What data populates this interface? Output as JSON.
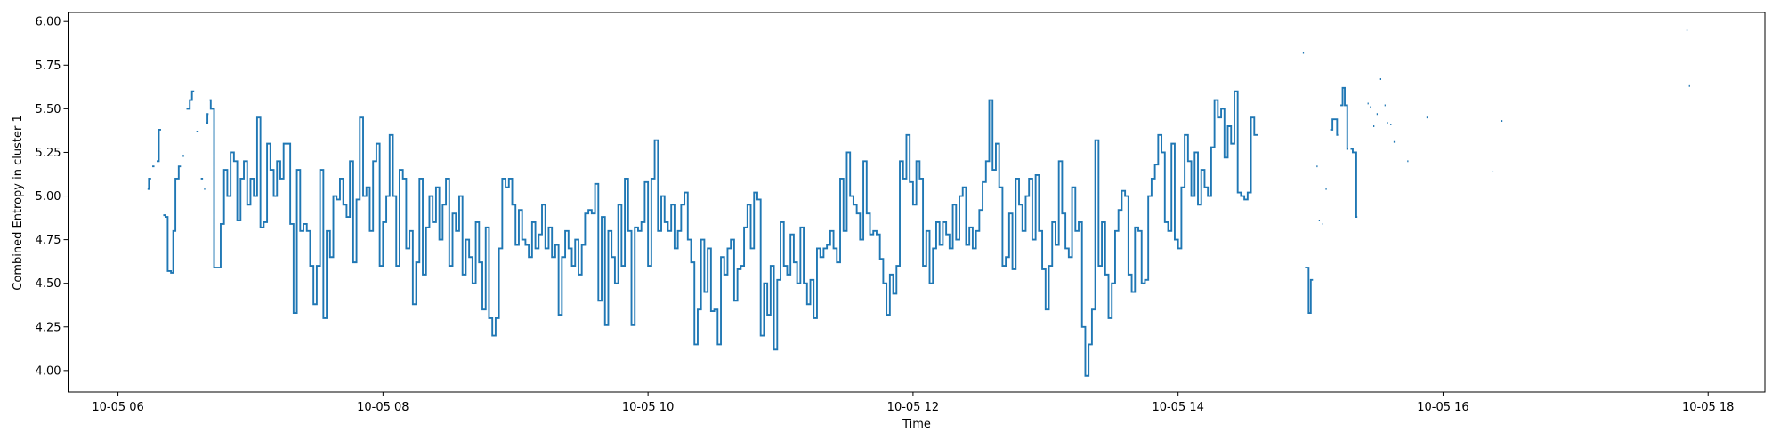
{
  "chart_data": {
    "type": "line",
    "step": true,
    "x_label": "Time",
    "y_label": "Combined Entropy in cluster 1",
    "xlim": [
      337.4,
      1105.7
    ],
    "ylim": [
      3.877,
      6.052
    ],
    "xticks": [
      {
        "value": 360,
        "label": "10-05 06"
      },
      {
        "value": 480,
        "label": "10-05 08"
      },
      {
        "value": 600,
        "label": "10-05 10"
      },
      {
        "value": 720,
        "label": "10-05 12"
      },
      {
        "value": 840,
        "label": "10-05 14"
      },
      {
        "value": 960,
        "label": "10-05 16"
      },
      {
        "value": 1080,
        "label": "10-05 18"
      }
    ],
    "yticks": [
      {
        "value": 4,
        "label": "4.00"
      },
      4.25,
      {
        "value": 4.5,
        "label": "4.50"
      },
      4.75,
      {
        "value": 5,
        "label": "5.00"
      },
      5.25,
      {
        "value": 5.5,
        "label": "5.50"
      },
      5.75,
      {
        "value": 6,
        "label": "6.00"
      }
    ],
    "grid": false,
    "series": [
      {
        "color": "#1f77b4",
        "x": [
          373.4,
          374,
          375,
          375.5,
          376.5,
          377.5,
          378.5,
          379.5,
          380.5,
          381.5,
          382.5,
          384,
          385,
          386,
          387.5,
          388.5,
          389,
          390,
          391,
          392.5,
          393.5,
          394.5,
          395.5,
          396.5,
          397.5,
          398.5,
          399,
          399.5,
          400,
          400.5,
          401,
          401.5,
          402,
          403.5,
          405,
          406.5,
          408,
          409.5,
          411,
          412.5,
          414,
          415.5,
          417,
          418.5,
          420,
          421.5,
          423,
          424.5,
          426,
          427.5,
          429,
          430.5,
          432,
          433.5,
          435,
          436.5,
          438,
          439.5,
          441,
          442.5,
          444,
          445.5,
          447,
          448.5,
          450,
          451.5,
          453,
          454.5,
          456,
          457.5,
          459,
          460.5,
          462,
          463.5,
          465,
          466.5,
          468,
          469.5,
          471,
          472.5,
          474,
          475.5,
          477,
          478.5,
          480,
          481.5,
          483,
          484.5,
          486,
          487.5,
          489,
          490.5,
          492,
          493.5,
          495,
          496.5,
          498,
          499.5,
          501,
          502.5,
          504,
          505.5,
          507,
          508.5,
          510,
          511.5,
          513,
          514.5,
          516,
          517.5,
          519,
          520.5,
          522,
          523.5,
          525,
          526.5,
          528,
          529.5,
          531,
          532.5,
          534,
          535.5,
          537,
          538.5,
          540,
          541.5,
          543,
          544.5,
          546,
          547.5,
          549,
          550.5,
          552,
          553.5,
          555,
          556.5,
          558,
          559.5,
          561,
          562.5,
          564,
          565.5,
          567,
          568.5,
          570,
          571.5,
          573,
          574.5,
          576,
          577.5,
          579,
          580.5,
          582,
          583.5,
          585,
          586.5,
          588,
          589.5,
          591,
          592.5,
          594,
          595.5,
          597,
          598.5,
          600,
          601.5,
          603,
          604.5,
          606,
          607.5,
          609,
          610.5,
          612,
          613.5,
          615,
          616.5,
          618,
          619.5,
          621,
          622.5,
          624,
          625.5,
          627,
          628.5,
          630,
          631.5,
          633,
          634.5,
          636,
          637.5,
          639,
          640.5,
          642,
          643.5,
          645,
          646.5,
          648,
          649.5,
          651,
          652.5,
          654,
          655.5,
          657,
          658.5,
          660,
          661.5,
          663,
          664.5,
          666,
          667.5,
          669,
          670.5,
          672,
          673.5,
          675,
          676.5,
          678,
          679.5,
          681,
          682.5,
          684,
          685.5,
          687,
          688.5,
          690,
          691.5,
          693,
          694.5,
          696,
          697.5,
          699,
          700.5,
          702,
          703.5,
          705,
          706.5,
          708,
          709.5,
          711,
          712.5,
          714,
          715.5,
          717,
          718.5,
          720,
          721.5,
          723,
          724.5,
          726,
          727.5,
          729,
          730.5,
          732,
          733.5,
          735,
          736.5,
          738,
          739.5,
          741,
          742.5,
          744,
          745.5,
          747,
          748.5,
          750,
          751.5,
          753,
          754.5,
          756,
          757.5,
          759,
          760.5,
          762,
          763.5,
          765,
          766.5,
          768,
          769.5,
          771,
          772.5,
          774,
          775.5,
          777,
          778.5,
          780,
          781.5,
          783,
          784.5,
          786,
          787.5,
          789,
          790.5,
          792,
          793.5,
          795,
          796.5,
          798,
          799.5,
          801,
          802.5,
          804,
          805.5,
          807,
          808.5,
          810,
          811.5,
          813,
          814.5,
          816,
          817.5,
          819,
          820.5,
          822,
          823.5,
          825,
          826.5,
          828,
          829.5,
          831,
          832.5,
          834,
          835.5,
          837,
          838.5,
          840,
          841.5,
          843,
          844.5,
          846,
          847.5,
          849,
          850.5,
          852,
          853.5,
          855,
          856.5,
          858,
          859.5,
          861,
          862.5,
          864,
          865.5,
          867,
          868.5,
          870,
          871.5,
          873,
          874.5,
          876,
          896.5,
          897,
          897.5,
          898.6,
          899.1,
          900.1,
          901.1,
          902.7,
          903.2,
          903.7,
          904.2,
          905.3,
          905.8,
          906.8,
          907.3,
          908.9,
          909.9,
          910.9,
          912,
          912.5,
          913.5,
          914.5,
          915.5,
          916.6,
          917.1,
          918.1,
          919.1,
          920.7,
          921.2,
          925.8,
          926.3,
          926.9,
          927.4,
          928.4,
          928.9,
          929.9,
          930.4,
          931.5,
          932,
          933.5,
          934,
          934.6,
          935.1,
          936.1,
          936.6,
          937.6,
          938.1,
          943.8,
          944.3,
          952.5,
          953,
          982.3,
          982.8,
          986.4,
          986.9,
          1070.2,
          1070.7,
          1071.3,
          1071.8
        ],
        "values": [
          5.04,
          5.1,
          null,
          5.17,
          null,
          5.2,
          5.38,
          null,
          4.89,
          4.88,
          4.57,
          4.56,
          4.8,
          5.1,
          5.17,
          null,
          5.23,
          null,
          5.5,
          5.55,
          5.6,
          null,
          5.37,
          null,
          5.1,
          null,
          5.04,
          null,
          5.42,
          5.47,
          null,
          5.55,
          5.5,
          4.59,
          4.59,
          4.84,
          5.15,
          5.0,
          5.25,
          5.2,
          4.86,
          5.1,
          5.2,
          4.95,
          5.1,
          5.0,
          5.45,
          4.82,
          4.85,
          5.3,
          5.15,
          5.0,
          5.2,
          5.1,
          5.3,
          5.3,
          4.84,
          4.33,
          5.15,
          4.8,
          4.84,
          4.8,
          4.6,
          4.38,
          4.6,
          5.15,
          4.3,
          4.8,
          4.65,
          5.0,
          4.98,
          5.1,
          4.95,
          4.88,
          5.2,
          4.62,
          4.98,
          5.45,
          5.0,
          5.05,
          4.8,
          5.2,
          5.3,
          4.6,
          4.85,
          5.0,
          5.35,
          5.0,
          4.6,
          5.15,
          5.1,
          4.7,
          4.8,
          4.38,
          4.62,
          5.1,
          4.55,
          4.82,
          5.0,
          4.85,
          5.05,
          4.75,
          4.95,
          5.1,
          4.6,
          4.9,
          4.8,
          5.0,
          4.55,
          4.75,
          4.65,
          4.5,
          4.85,
          4.62,
          4.35,
          4.82,
          4.3,
          4.2,
          4.3,
          4.7,
          5.1,
          5.05,
          5.1,
          4.95,
          4.72,
          4.92,
          4.75,
          4.72,
          4.65,
          4.85,
          4.7,
          4.78,
          4.95,
          4.7,
          4.82,
          4.65,
          4.72,
          4.32,
          4.65,
          4.8,
          4.7,
          4.6,
          4.75,
          4.55,
          4.72,
          4.9,
          4.92,
          4.9,
          5.07,
          4.4,
          4.88,
          4.26,
          4.8,
          4.65,
          4.5,
          4.95,
          4.6,
          5.1,
          4.8,
          4.26,
          4.82,
          4.8,
          4.85,
          5.08,
          4.6,
          5.1,
          5.32,
          4.8,
          5.0,
          4.85,
          4.8,
          4.95,
          4.7,
          4.8,
          4.95,
          5.02,
          4.75,
          4.62,
          4.15,
          4.35,
          4.75,
          4.45,
          4.7,
          4.34,
          4.35,
          4.15,
          4.65,
          4.55,
          4.7,
          4.75,
          4.4,
          4.58,
          4.6,
          4.82,
          4.95,
          4.7,
          5.02,
          4.98,
          4.2,
          4.5,
          4.32,
          4.6,
          4.12,
          4.52,
          4.85,
          4.6,
          4.55,
          4.78,
          4.62,
          4.5,
          4.82,
          4.5,
          4.38,
          4.52,
          4.3,
          4.7,
          4.65,
          4.7,
          4.72,
          4.8,
          4.7,
          4.62,
          5.1,
          4.8,
          5.25,
          5.0,
          4.95,
          4.9,
          4.75,
          5.2,
          4.9,
          4.78,
          4.8,
          4.78,
          4.64,
          4.5,
          4.32,
          4.55,
          4.44,
          4.6,
          5.2,
          5.1,
          5.35,
          5.08,
          4.95,
          5.2,
          5.1,
          4.6,
          4.8,
          4.5,
          4.7,
          4.85,
          4.72,
          4.85,
          4.78,
          4.7,
          4.95,
          4.75,
          5.0,
          5.05,
          4.72,
          4.82,
          4.7,
          4.8,
          4.92,
          5.08,
          5.2,
          5.55,
          5.15,
          5.3,
          5.05,
          4.6,
          4.65,
          4.9,
          4.58,
          5.1,
          4.95,
          4.8,
          5.0,
          5.1,
          4.75,
          5.12,
          4.8,
          4.58,
          4.35,
          4.6,
          4.85,
          4.72,
          5.2,
          4.9,
          4.7,
          4.65,
          5.05,
          4.8,
          4.85,
          4.25,
          3.97,
          4.15,
          4.35,
          5.32,
          4.6,
          4.85,
          4.55,
          4.3,
          4.5,
          4.8,
          4.92,
          5.03,
          5.0,
          4.55,
          4.45,
          4.82,
          4.8,
          4.5,
          4.52,
          5.0,
          5.1,
          5.18,
          5.35,
          5.25,
          4.85,
          4.8,
          5.3,
          4.75,
          4.7,
          5.05,
          5.35,
          5.2,
          5.0,
          5.25,
          4.95,
          5.15,
          5.05,
          5.0,
          5.28,
          5.55,
          5.45,
          5.5,
          5.22,
          5.4,
          5.3,
          5.6,
          5.02,
          5.0,
          4.98,
          5.02,
          5.45,
          5.35,
          null,
          5.82,
          null,
          4.59,
          4.59,
          4.33,
          4.52,
          null,
          5.17,
          null,
          4.86,
          null,
          4.84,
          null,
          5.04,
          null,
          5.38,
          5.44,
          5.44,
          5.35,
          null,
          5.52,
          5.62,
          5.52,
          5.27,
          null,
          5.27,
          5.25,
          4.88,
          null,
          5.53,
          null,
          5.51,
          null,
          5.4,
          null,
          5.47,
          null,
          5.67,
          null,
          5.52,
          null,
          5.42,
          null,
          5.41,
          null,
          5.31,
          null,
          5.2,
          null,
          5.45,
          null,
          5.14,
          null,
          5.43,
          null,
          5.95,
          null,
          5.63,
          null
        ]
      }
    ]
  }
}
